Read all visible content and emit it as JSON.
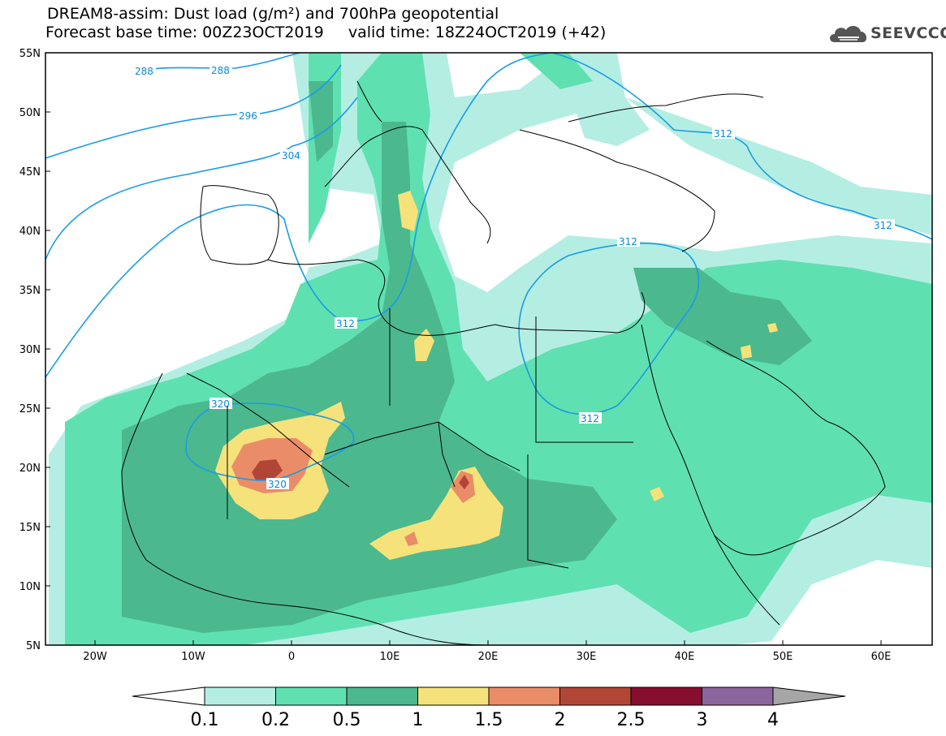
{
  "header": {
    "title_line_1": "DREAM8-assim: Dust load (g/m²) and 700hPa geopotential",
    "title_line_2": "Forecast base time: 00Z23OCT2019     valid time: 18Z24OCT2019 (+42)",
    "logo_text": "SEEVCCC"
  },
  "map": {
    "lat_labels": [
      "55N",
      "50N",
      "45N",
      "40N",
      "35N",
      "30N",
      "25N",
      "20N",
      "15N",
      "10N",
      "5N"
    ],
    "lon_labels": [
      "20W",
      "10W",
      "0",
      "10E",
      "20E",
      "30E",
      "40E",
      "50E",
      "60E"
    ],
    "lon_range": [
      -25,
      65
    ],
    "lat_range": [
      5,
      55
    ],
    "contour_color": "#1a9be6",
    "contour_labels": [
      "288",
      "288",
      "296",
      "304",
      "312",
      "312",
      "312",
      "312",
      "312",
      "320",
      "320"
    ]
  },
  "colorbar": {
    "levels": [
      "0.1",
      "0.2",
      "0.5",
      "1",
      "1.5",
      "2",
      "2.5",
      "3",
      "4"
    ],
    "colors": [
      "#b4eee2",
      "#5fe0b0",
      "#4cb88e",
      "#f5e27a",
      "#eb8c68",
      "#b24636",
      "#870e2e",
      "#8b659e"
    ],
    "below_color": "#ffffff",
    "above_color": "#a6a6a6"
  }
}
